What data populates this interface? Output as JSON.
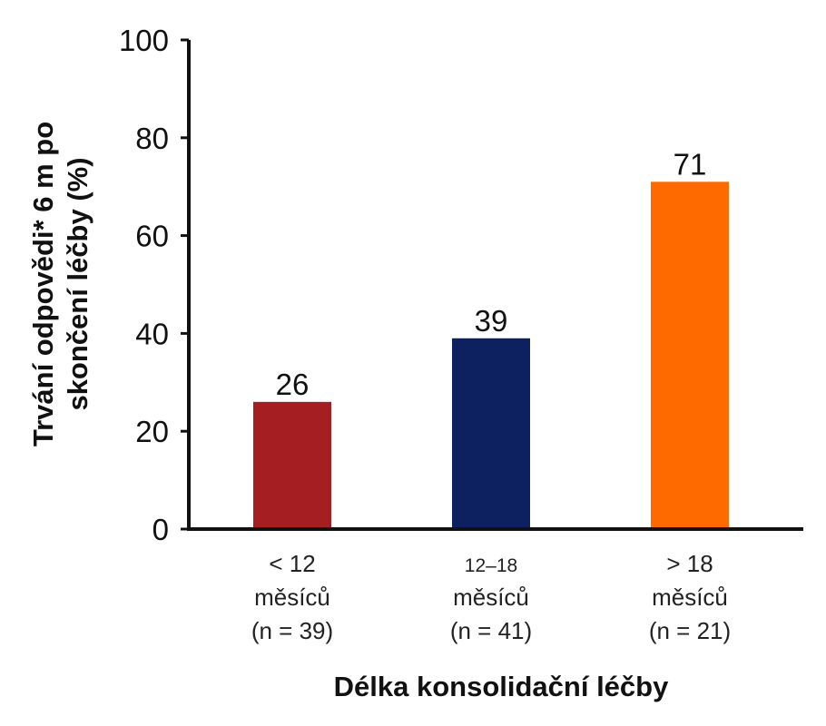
{
  "chart_data": {
    "type": "bar",
    "categories": [
      [
        "< 12",
        "měsíců",
        "(n = 39)"
      ],
      [
        "12–18",
        "měsíců",
        "(n = 41)"
      ],
      [
        "> 18",
        "měsíců",
        "(n = 21)"
      ]
    ],
    "values": [
      26,
      39,
      71
    ],
    "colors": [
      "#a51e22",
      "#0d2060",
      "#ff6a00"
    ],
    "xlabel": "Délka konsolidační léčby",
    "ylabel": [
      "Trvání odpovědi* 6 m po",
      "skončení léčby (%)"
    ],
    "ylim": [
      0,
      100
    ],
    "yticks": [
      0,
      20,
      40,
      60,
      80,
      100
    ],
    "grid": false,
    "legend": "none"
  }
}
